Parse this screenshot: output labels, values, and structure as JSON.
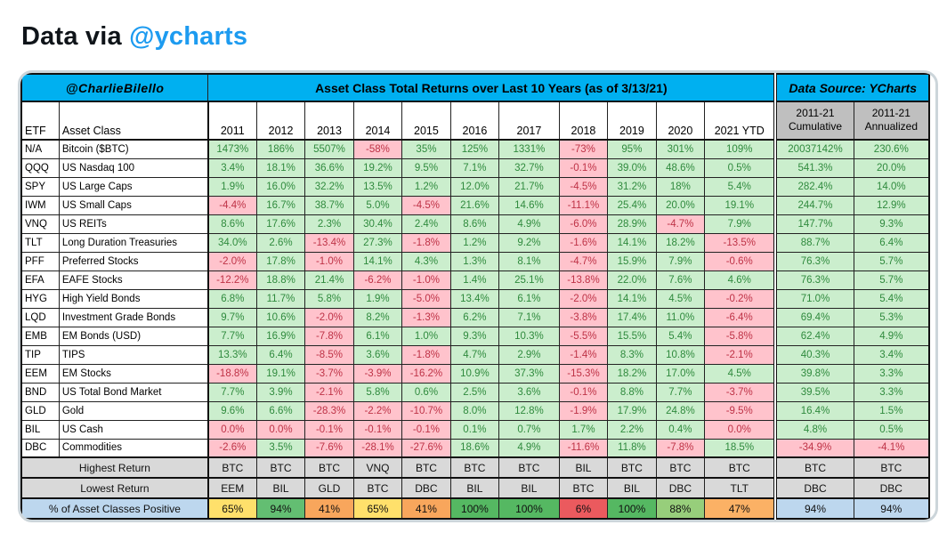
{
  "page": {
    "title_prefix": "Data via ",
    "title_handle": "@ycharts",
    "handle_color": "#1d9bf0"
  },
  "chart_data": {
    "type": "table",
    "credit": "@CharlieBilello",
    "title": "Asset Class Total Returns over Last 10 Years (as of 3/13/21)",
    "data_source_label": "Data Source: YCharts",
    "col_headers": {
      "etf": "ETF",
      "asset_class": "Asset Class",
      "years": [
        "2011",
        "2012",
        "2013",
        "2014",
        "2015",
        "2016",
        "2017",
        "2018",
        "2019",
        "2020",
        "2021 YTD"
      ],
      "cumulative": [
        "2011-21",
        "Cumulative"
      ],
      "annualized": [
        "2011-21",
        "Annualized"
      ]
    },
    "rows": [
      {
        "etf": "N/A",
        "asset_class": "Bitcoin ($BTC)",
        "values": [
          "1473%",
          "186%",
          "5507%",
          "-58%",
          "35%",
          "125%",
          "1331%",
          "-73%",
          "95%",
          "301%",
          "109%"
        ],
        "cumulative": "20037142%",
        "annualized": "230.6%"
      },
      {
        "etf": "QQQ",
        "asset_class": "US Nasdaq 100",
        "values": [
          "3.4%",
          "18.1%",
          "36.6%",
          "19.2%",
          "9.5%",
          "7.1%",
          "32.7%",
          "-0.1%",
          "39.0%",
          "48.6%",
          "0.5%"
        ],
        "cumulative": "541.3%",
        "annualized": "20.0%"
      },
      {
        "etf": "SPY",
        "asset_class": "US Large Caps",
        "values": [
          "1.9%",
          "16.0%",
          "32.2%",
          "13.5%",
          "1.2%",
          "12.0%",
          "21.7%",
          "-4.5%",
          "31.2%",
          "18%",
          "5.4%"
        ],
        "cumulative": "282.4%",
        "annualized": "14.0%"
      },
      {
        "etf": "IWM",
        "asset_class": "US Small Caps",
        "values": [
          "-4.4%",
          "16.7%",
          "38.7%",
          "5.0%",
          "-4.5%",
          "21.6%",
          "14.6%",
          "-11.1%",
          "25.4%",
          "20.0%",
          "19.1%"
        ],
        "cumulative": "244.7%",
        "annualized": "12.9%"
      },
      {
        "etf": "VNQ",
        "asset_class": "US REITs",
        "values": [
          "8.6%",
          "17.6%",
          "2.3%",
          "30.4%",
          "2.4%",
          "8.6%",
          "4.9%",
          "-6.0%",
          "28.9%",
          "-4.7%",
          "7.9%"
        ],
        "cumulative": "147.7%",
        "annualized": "9.3%"
      },
      {
        "etf": "TLT",
        "asset_class": "Long Duration Treasuries",
        "values": [
          "34.0%",
          "2.6%",
          "-13.4%",
          "27.3%",
          "-1.8%",
          "1.2%",
          "9.2%",
          "-1.6%",
          "14.1%",
          "18.2%",
          "-13.5%"
        ],
        "cumulative": "88.7%",
        "annualized": "6.4%"
      },
      {
        "etf": "PFF",
        "asset_class": "Preferred Stocks",
        "values": [
          "-2.0%",
          "17.8%",
          "-1.0%",
          "14.1%",
          "4.3%",
          "1.3%",
          "8.1%",
          "-4.7%",
          "15.9%",
          "7.9%",
          "-0.6%"
        ],
        "cumulative": "76.3%",
        "annualized": "5.7%"
      },
      {
        "etf": "EFA",
        "asset_class": "EAFE Stocks",
        "values": [
          "-12.2%",
          "18.8%",
          "21.4%",
          "-6.2%",
          "-1.0%",
          "1.4%",
          "25.1%",
          "-13.8%",
          "22.0%",
          "7.6%",
          "4.6%"
        ],
        "cumulative": "76.3%",
        "annualized": "5.7%"
      },
      {
        "etf": "HYG",
        "asset_class": "High Yield Bonds",
        "values": [
          "6.8%",
          "11.7%",
          "5.8%",
          "1.9%",
          "-5.0%",
          "13.4%",
          "6.1%",
          "-2.0%",
          "14.1%",
          "4.5%",
          "-0.2%"
        ],
        "cumulative": "71.0%",
        "annualized": "5.4%"
      },
      {
        "etf": "LQD",
        "asset_class": "Investment Grade Bonds",
        "values": [
          "9.7%",
          "10.6%",
          "-2.0%",
          "8.2%",
          "-1.3%",
          "6.2%",
          "7.1%",
          "-3.8%",
          "17.4%",
          "11.0%",
          "-6.4%"
        ],
        "cumulative": "69.4%",
        "annualized": "5.3%"
      },
      {
        "etf": "EMB",
        "asset_class": "EM Bonds (USD)",
        "values": [
          "7.7%",
          "16.9%",
          "-7.8%",
          "6.1%",
          "1.0%",
          "9.3%",
          "10.3%",
          "-5.5%",
          "15.5%",
          "5.4%",
          "-5.8%"
        ],
        "cumulative": "62.4%",
        "annualized": "4.9%"
      },
      {
        "etf": "TIP",
        "asset_class": "TIPS",
        "values": [
          "13.3%",
          "6.4%",
          "-8.5%",
          "3.6%",
          "-1.8%",
          "4.7%",
          "2.9%",
          "-1.4%",
          "8.3%",
          "10.8%",
          "-2.1%"
        ],
        "cumulative": "40.3%",
        "annualized": "3.4%"
      },
      {
        "etf": "EEM",
        "asset_class": "EM Stocks",
        "values": [
          "-18.8%",
          "19.1%",
          "-3.7%",
          "-3.9%",
          "-16.2%",
          "10.9%",
          "37.3%",
          "-15.3%",
          "18.2%",
          "17.0%",
          "4.5%"
        ],
        "cumulative": "39.8%",
        "annualized": "3.3%"
      },
      {
        "etf": "BND",
        "asset_class": "US Total Bond Market",
        "values": [
          "7.7%",
          "3.9%",
          "-2.1%",
          "5.8%",
          "0.6%",
          "2.5%",
          "3.6%",
          "-0.1%",
          "8.8%",
          "7.7%",
          "-3.7%"
        ],
        "cumulative": "39.5%",
        "annualized": "3.3%"
      },
      {
        "etf": "GLD",
        "asset_class": "Gold",
        "values": [
          "9.6%",
          "6.6%",
          "-28.3%",
          "-2.2%",
          "-10.7%",
          "8.0%",
          "12.8%",
          "-1.9%",
          "17.9%",
          "24.8%",
          "-9.5%"
        ],
        "cumulative": "16.4%",
        "annualized": "1.5%"
      },
      {
        "etf": "BIL",
        "asset_class": "US Cash",
        "values": [
          "0.0%",
          "0.0%",
          "-0.1%",
          "-0.1%",
          "-0.1%",
          "0.1%",
          "0.7%",
          "1.7%",
          "2.2%",
          "0.4%",
          "0.0%"
        ],
        "cumulative": "4.8%",
        "annualized": "0.5%"
      },
      {
        "etf": "DBC",
        "asset_class": "Commodities",
        "values": [
          "-2.6%",
          "3.5%",
          "-7.6%",
          "-28.1%",
          "-27.6%",
          "18.6%",
          "4.9%",
          "-11.6%",
          "11.8%",
          "-7.8%",
          "18.5%"
        ],
        "cumulative": "-34.9%",
        "annualized": "-4.1%"
      }
    ],
    "summary": {
      "highest": {
        "label": "Highest Return",
        "values": [
          "BTC",
          "BTC",
          "BTC",
          "VNQ",
          "BTC",
          "BTC",
          "BTC",
          "BIL",
          "BTC",
          "BTC",
          "BTC"
        ],
        "cumulative": "BTC",
        "annualized": "BTC"
      },
      "lowest": {
        "label": "Lowest Return",
        "values": [
          "EEM",
          "BIL",
          "GLD",
          "BTC",
          "DBC",
          "BIL",
          "BIL",
          "BTC",
          "BIL",
          "DBC",
          "TLT"
        ],
        "cumulative": "DBC",
        "annualized": "DBC"
      },
      "pct_positive": {
        "label": "% of Asset Classes Positive",
        "values": [
          "65%",
          "94%",
          "41%",
          "65%",
          "41%",
          "100%",
          "100%",
          "6%",
          "100%",
          "88%",
          "47%"
        ],
        "value_colors": [
          "#ffe06b",
          "#63be72",
          "#f8a65c",
          "#ffe06b",
          "#f8a65c",
          "#55b862",
          "#55b862",
          "#eb5a5e",
          "#55b862",
          "#97ce7b",
          "#fbb165"
        ],
        "cumulative": "94%",
        "annualized": "94%",
        "cumulative_color": "#bdd7ee",
        "annualized_color": "#bdd7ee"
      }
    },
    "colors": {
      "header_cyan": "#00b0f0",
      "positive_bg": "#cbeecd",
      "positive_text": "#2f8a3d",
      "negative_bg": "#ffc3cc",
      "negative_text": "#be3246",
      "summary_gray": "#d9d9d9",
      "range_header_gray": "#bfbfbf",
      "pct_label_blue": "#bdd7ee"
    }
  }
}
